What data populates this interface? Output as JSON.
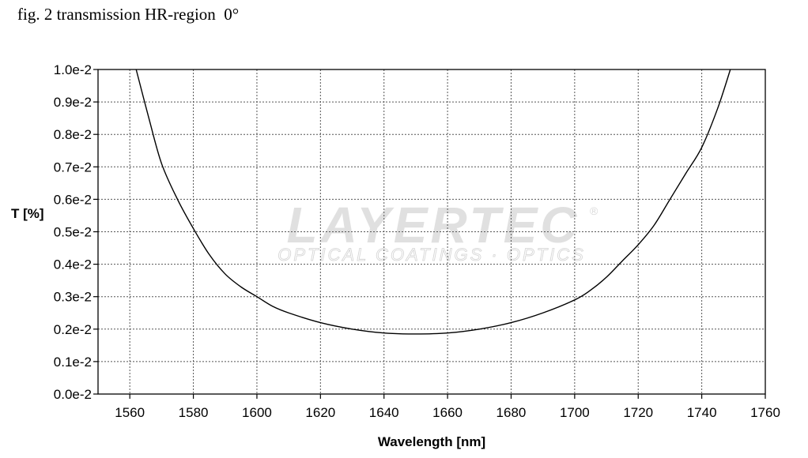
{
  "caption": "fig. 2 transmission HR-region  0°",
  "watermark": {
    "brand": "LAYERTEC",
    "registered": "®",
    "tagline": "OPTICAL COATINGS · OPTICS"
  },
  "chart_data": {
    "type": "line",
    "title": "",
    "xlabel": "Wavelength [nm]",
    "ylabel": "T [%]",
    "xlim": [
      1550,
      1760
    ],
    "ylim": [
      0.0,
      0.01
    ],
    "grid": true,
    "x_ticks": [
      1560,
      1580,
      1600,
      1620,
      1640,
      1660,
      1680,
      1700,
      1720,
      1740,
      1760
    ],
    "x_tick_labels": [
      "1560",
      "1580",
      "1600",
      "1620",
      "1640",
      "1660",
      "1680",
      "1700",
      "1720",
      "1740",
      "1760"
    ],
    "y_ticks": [
      0.0,
      0.001,
      0.002,
      0.003,
      0.004,
      0.005,
      0.006,
      0.007,
      0.008,
      0.009,
      0.01
    ],
    "y_tick_labels": [
      "0.0e-2",
      "0.1e-2",
      "0.2e-2",
      "0.3e-2",
      "0.4e-2",
      "0.5e-2",
      "0.6e-2",
      "0.7e-2",
      "0.8e-2",
      "0.9e-2",
      "1.0e-2"
    ],
    "series": [
      {
        "color": "#000000",
        "x": [
          1562,
          1566,
          1570,
          1575,
          1580,
          1585,
          1590,
          1595,
          1600,
          1605,
          1610,
          1620,
          1630,
          1640,
          1650,
          1660,
          1670,
          1680,
          1690,
          1700,
          1705,
          1710,
          1715,
          1720,
          1725,
          1730,
          1735,
          1740,
          1745,
          1749
        ],
        "y": [
          0.01,
          0.0085,
          0.0071,
          0.006,
          0.0051,
          0.0043,
          0.0037,
          0.0033,
          0.003,
          0.0027,
          0.0025,
          0.0022,
          0.002,
          0.00188,
          0.00185,
          0.00188,
          0.002,
          0.0022,
          0.0025,
          0.0029,
          0.0032,
          0.0036,
          0.0041,
          0.0046,
          0.0052,
          0.006,
          0.0068,
          0.0076,
          0.0088,
          0.01
        ]
      }
    ]
  }
}
